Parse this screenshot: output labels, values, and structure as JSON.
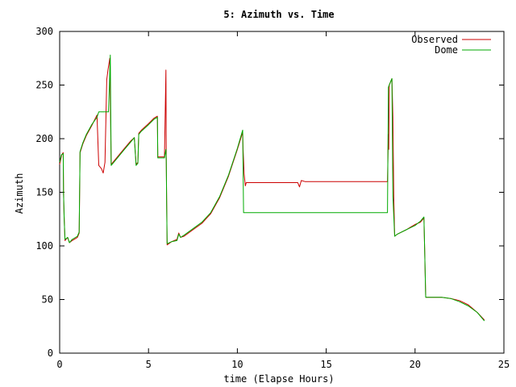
{
  "chart_data": {
    "type": "line",
    "title": "5: Azimuth vs. Time",
    "xlabel": "time (Elapse Hours)",
    "ylabel": "Azimuth",
    "xlim": [
      0,
      25
    ],
    "ylim": [
      0,
      300
    ],
    "xticks": [
      0,
      5,
      10,
      15,
      20,
      25
    ],
    "yticks": [
      0,
      50,
      100,
      150,
      200,
      250,
      300
    ],
    "grid": false,
    "legend_position": "top-right",
    "series": [
      {
        "name": "Observed",
        "color": "#cc0000",
        "points": [
          [
            0,
            176
          ],
          [
            0.12,
            185
          ],
          [
            0.2,
            187
          ],
          [
            0.22,
            150
          ],
          [
            0.25,
            128
          ],
          [
            0.3,
            105
          ],
          [
            0.45,
            108
          ],
          [
            0.55,
            103
          ],
          [
            0.7,
            105
          ],
          [
            1.0,
            108
          ],
          [
            1.1,
            112
          ],
          [
            1.15,
            187
          ],
          [
            1.3,
            195
          ],
          [
            1.5,
            203
          ],
          [
            1.8,
            212
          ],
          [
            2.1,
            222
          ],
          [
            2.2,
            175
          ],
          [
            2.35,
            172
          ],
          [
            2.45,
            168
          ],
          [
            2.55,
            178
          ],
          [
            2.65,
            255
          ],
          [
            2.72,
            264
          ],
          [
            2.82,
            275
          ],
          [
            2.9,
            176
          ],
          [
            3.2,
            182
          ],
          [
            3.6,
            190
          ],
          [
            4.0,
            198
          ],
          [
            4.2,
            201
          ],
          [
            4.3,
            176
          ],
          [
            4.4,
            178
          ],
          [
            4.45,
            205
          ],
          [
            4.6,
            208
          ],
          [
            5.0,
            214
          ],
          [
            5.3,
            219
          ],
          [
            5.5,
            221
          ],
          [
            5.52,
            183
          ],
          [
            5.9,
            183
          ],
          [
            5.98,
            264
          ],
          [
            6.0,
            183
          ],
          [
            6.02,
            142
          ],
          [
            6.05,
            101
          ],
          [
            6.3,
            104
          ],
          [
            6.6,
            106
          ],
          [
            6.7,
            112
          ],
          [
            6.8,
            108
          ],
          [
            7.0,
            109
          ],
          [
            7.5,
            115
          ],
          [
            8.0,
            121
          ],
          [
            8.5,
            130
          ],
          [
            9.0,
            145
          ],
          [
            9.5,
            165
          ],
          [
            10.0,
            190
          ],
          [
            10.3,
            206
          ],
          [
            10.32,
            190
          ],
          [
            10.38,
            167
          ],
          [
            10.45,
            156
          ],
          [
            10.5,
            159
          ],
          [
            11.0,
            159
          ],
          [
            12.0,
            159
          ],
          [
            13.0,
            159
          ],
          [
            13.4,
            159
          ],
          [
            13.5,
            155
          ],
          [
            13.6,
            161
          ],
          [
            13.8,
            160
          ],
          [
            14.5,
            160
          ],
          [
            16.0,
            160
          ],
          [
            17.0,
            160
          ],
          [
            18.0,
            160
          ],
          [
            18.45,
            160
          ],
          [
            18.5,
            204
          ],
          [
            18.52,
            190
          ],
          [
            18.55,
            250
          ],
          [
            18.7,
            256
          ],
          [
            18.75,
            220
          ],
          [
            18.8,
            146
          ],
          [
            18.85,
            109
          ],
          [
            19.0,
            111
          ],
          [
            19.5,
            115
          ],
          [
            20.0,
            120
          ],
          [
            20.3,
            122
          ],
          [
            20.5,
            126
          ],
          [
            20.55,
            90
          ],
          [
            20.6,
            52
          ],
          [
            21.0,
            52
          ],
          [
            21.5,
            52
          ],
          [
            22.0,
            51
          ],
          [
            22.5,
            49
          ],
          [
            23.0,
            45
          ],
          [
            23.5,
            38
          ],
          [
            23.9,
            31
          ]
        ]
      },
      {
        "name": "Dome",
        "color": "#00aa00",
        "points": [
          [
            0,
            178
          ],
          [
            0.1,
            185
          ],
          [
            0.2,
            186
          ],
          [
            0.22,
            150
          ],
          [
            0.25,
            128
          ],
          [
            0.3,
            106
          ],
          [
            0.45,
            108
          ],
          [
            0.55,
            103
          ],
          [
            0.7,
            106
          ],
          [
            1.0,
            109
          ],
          [
            1.1,
            113
          ],
          [
            1.15,
            188
          ],
          [
            1.3,
            196
          ],
          [
            1.5,
            204
          ],
          [
            1.8,
            213
          ],
          [
            2.1,
            220
          ],
          [
            2.2,
            225
          ],
          [
            2.5,
            225
          ],
          [
            2.75,
            225
          ],
          [
            2.8,
            250
          ],
          [
            2.85,
            278
          ],
          [
            2.9,
            175
          ],
          [
            3.2,
            181
          ],
          [
            3.6,
            189
          ],
          [
            4.0,
            197
          ],
          [
            4.2,
            201
          ],
          [
            4.3,
            175
          ],
          [
            4.4,
            177
          ],
          [
            4.45,
            204
          ],
          [
            4.6,
            207
          ],
          [
            5.0,
            213
          ],
          [
            5.3,
            218
          ],
          [
            5.5,
            220
          ],
          [
            5.52,
            182
          ],
          [
            5.9,
            182
          ],
          [
            5.98,
            190
          ],
          [
            6.0,
            180
          ],
          [
            6.02,
            140
          ],
          [
            6.05,
            102
          ],
          [
            6.3,
            104
          ],
          [
            6.6,
            105
          ],
          [
            6.7,
            111
          ],
          [
            6.8,
            108
          ],
          [
            7.0,
            110
          ],
          [
            7.5,
            116
          ],
          [
            8.0,
            122
          ],
          [
            8.5,
            131
          ],
          [
            9.0,
            146
          ],
          [
            9.5,
            166
          ],
          [
            10.0,
            191
          ],
          [
            10.3,
            208
          ],
          [
            10.35,
            131
          ],
          [
            11.0,
            131
          ],
          [
            12.0,
            131
          ],
          [
            13.0,
            131
          ],
          [
            14.0,
            131
          ],
          [
            15.0,
            131
          ],
          [
            16.0,
            131
          ],
          [
            17.0,
            131
          ],
          [
            18.0,
            131
          ],
          [
            18.45,
            131
          ],
          [
            18.5,
            248
          ],
          [
            18.6,
            252
          ],
          [
            18.7,
            256
          ],
          [
            18.75,
            146
          ],
          [
            18.85,
            109
          ],
          [
            19.0,
            111
          ],
          [
            19.5,
            115
          ],
          [
            20.0,
            119
          ],
          [
            20.3,
            123
          ],
          [
            20.5,
            127
          ],
          [
            20.55,
            90
          ],
          [
            20.6,
            52
          ],
          [
            21.0,
            52
          ],
          [
            21.5,
            52
          ],
          [
            22.0,
            51
          ],
          [
            22.5,
            48
          ],
          [
            23.0,
            44
          ],
          [
            23.5,
            38
          ],
          [
            23.9,
            30
          ]
        ]
      }
    ]
  }
}
